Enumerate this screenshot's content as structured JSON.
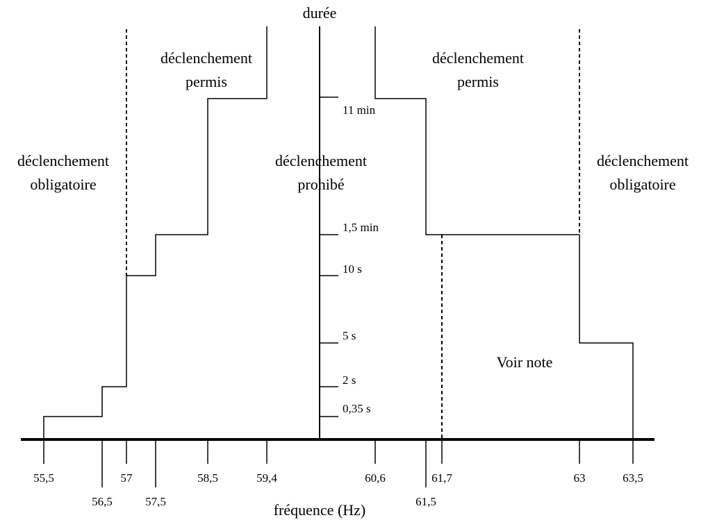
{
  "axes": {
    "y_title": "durée",
    "x_title": "fréquence (Hz)"
  },
  "duration_ticks": [
    "11 min",
    "1,5 min",
    "10 s",
    "5 s",
    "2 s",
    "0,35 s"
  ],
  "frequency_ticks": [
    "55,5",
    "56,5",
    "57",
    "57,5",
    "58,5",
    "59,4",
    "60,6",
    "61,5",
    "61,7",
    "63",
    "63,5"
  ],
  "regions": {
    "left_mandatory_line1": "déclenchement",
    "left_mandatory_line2": "obligatoire",
    "left_permitted_line1": "déclenchement",
    "left_permitted_line2": "permis",
    "center_prohibited_line1": "déclenchement",
    "center_prohibited_line2": "prohibé",
    "right_permitted_line1": "déclenchement",
    "right_permitted_line2": "permis",
    "right_mandatory_line1": "déclenchement",
    "right_mandatory_line2": "obligatoire"
  },
  "note": "Voir note",
  "colors": {
    "line": "#000000",
    "background": "#ffffff"
  }
}
